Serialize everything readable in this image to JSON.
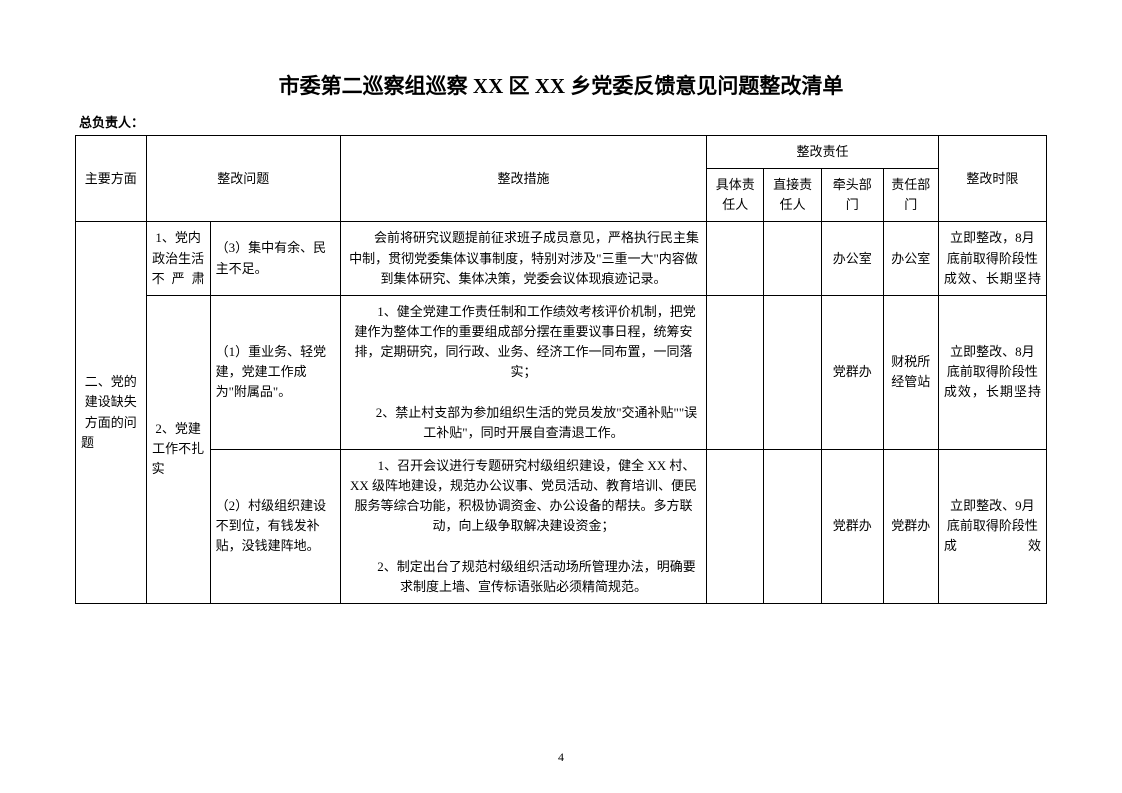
{
  "title": "市委第二巡察组巡察 XX 区 XX 乡党委反馈意见问题整改清单",
  "subheader": "总负责人：",
  "headers": {
    "aspect": "主要方面",
    "problem": "整改问题",
    "measure": "整改措施",
    "responsibility": "整改责任",
    "resp_specific": "具体责任人",
    "resp_direct": "直接责任人",
    "resp_lead_dept": "牵头部门",
    "resp_resp_dept": "责任部门",
    "deadline": "整改时限"
  },
  "aspect_label": "二、党的建设缺失方面的问题",
  "rows": [
    {
      "problem_a": "1、党内政治生活不严肃",
      "problem_b": "（3）集中有余、民主不足。",
      "measure": "会前将研究议题提前征求班子成员意见，严格执行民主集中制，贯彻党委集体议事制度，特别对涉及\"三重一大\"内容做到集体研究、集体决策，党委会议体现痕迹记录。",
      "resp_specific": "",
      "resp_direct": "",
      "resp_lead_dept": "办公室",
      "resp_resp_dept": "办公室",
      "deadline": "立即整改，8月底前取得阶段性成效、长期坚持"
    },
    {
      "problem_a": "2、党建工作不扎实",
      "problem_b": "（1）重业务、轻党建，党建工作成为\"附属品\"。",
      "measure": "1、健全党建工作责任制和工作绩效考核评价机制，把党建作为整体工作的重要组成部分摆在重要议事日程，统筹安排，定期研究，同行政、业务、经济工作一同布置，一同落实；\n2、禁止村支部为参加组织生活的党员发放\"交通补贴\"\"误工补贴\"，同时开展自查清退工作。",
      "resp_specific": "",
      "resp_direct": "",
      "resp_lead_dept": "党群办",
      "resp_resp_dept": "财税所 经管站",
      "deadline": "立即整改、8月底前取得阶段性成效，长期坚持"
    },
    {
      "problem_b": "（2）村级组织建设不到位，有钱发补贴，没钱建阵地。",
      "measure": "1、召开会议进行专题研究村级组织建设，健全 XX 村、XX 级阵地建设，规范办公议事、党员活动、教育培训、便民服务等综合功能，积极协调资金、办公设备的帮扶。多方联动，向上级争取解决建设资金；\n2、制定出台了规范村级组织活动场所管理办法，明确要求制度上墙、宣传标语张贴必须精简规范。",
      "resp_specific": "",
      "resp_direct": "",
      "resp_lead_dept": "党群办",
      "resp_resp_dept": "党群办",
      "deadline": "立即整改、9月底前取得阶段性成效"
    }
  ],
  "page_number": "4",
  "colors": {
    "background": "#ffffff",
    "border": "#000000",
    "text": "#000000"
  }
}
